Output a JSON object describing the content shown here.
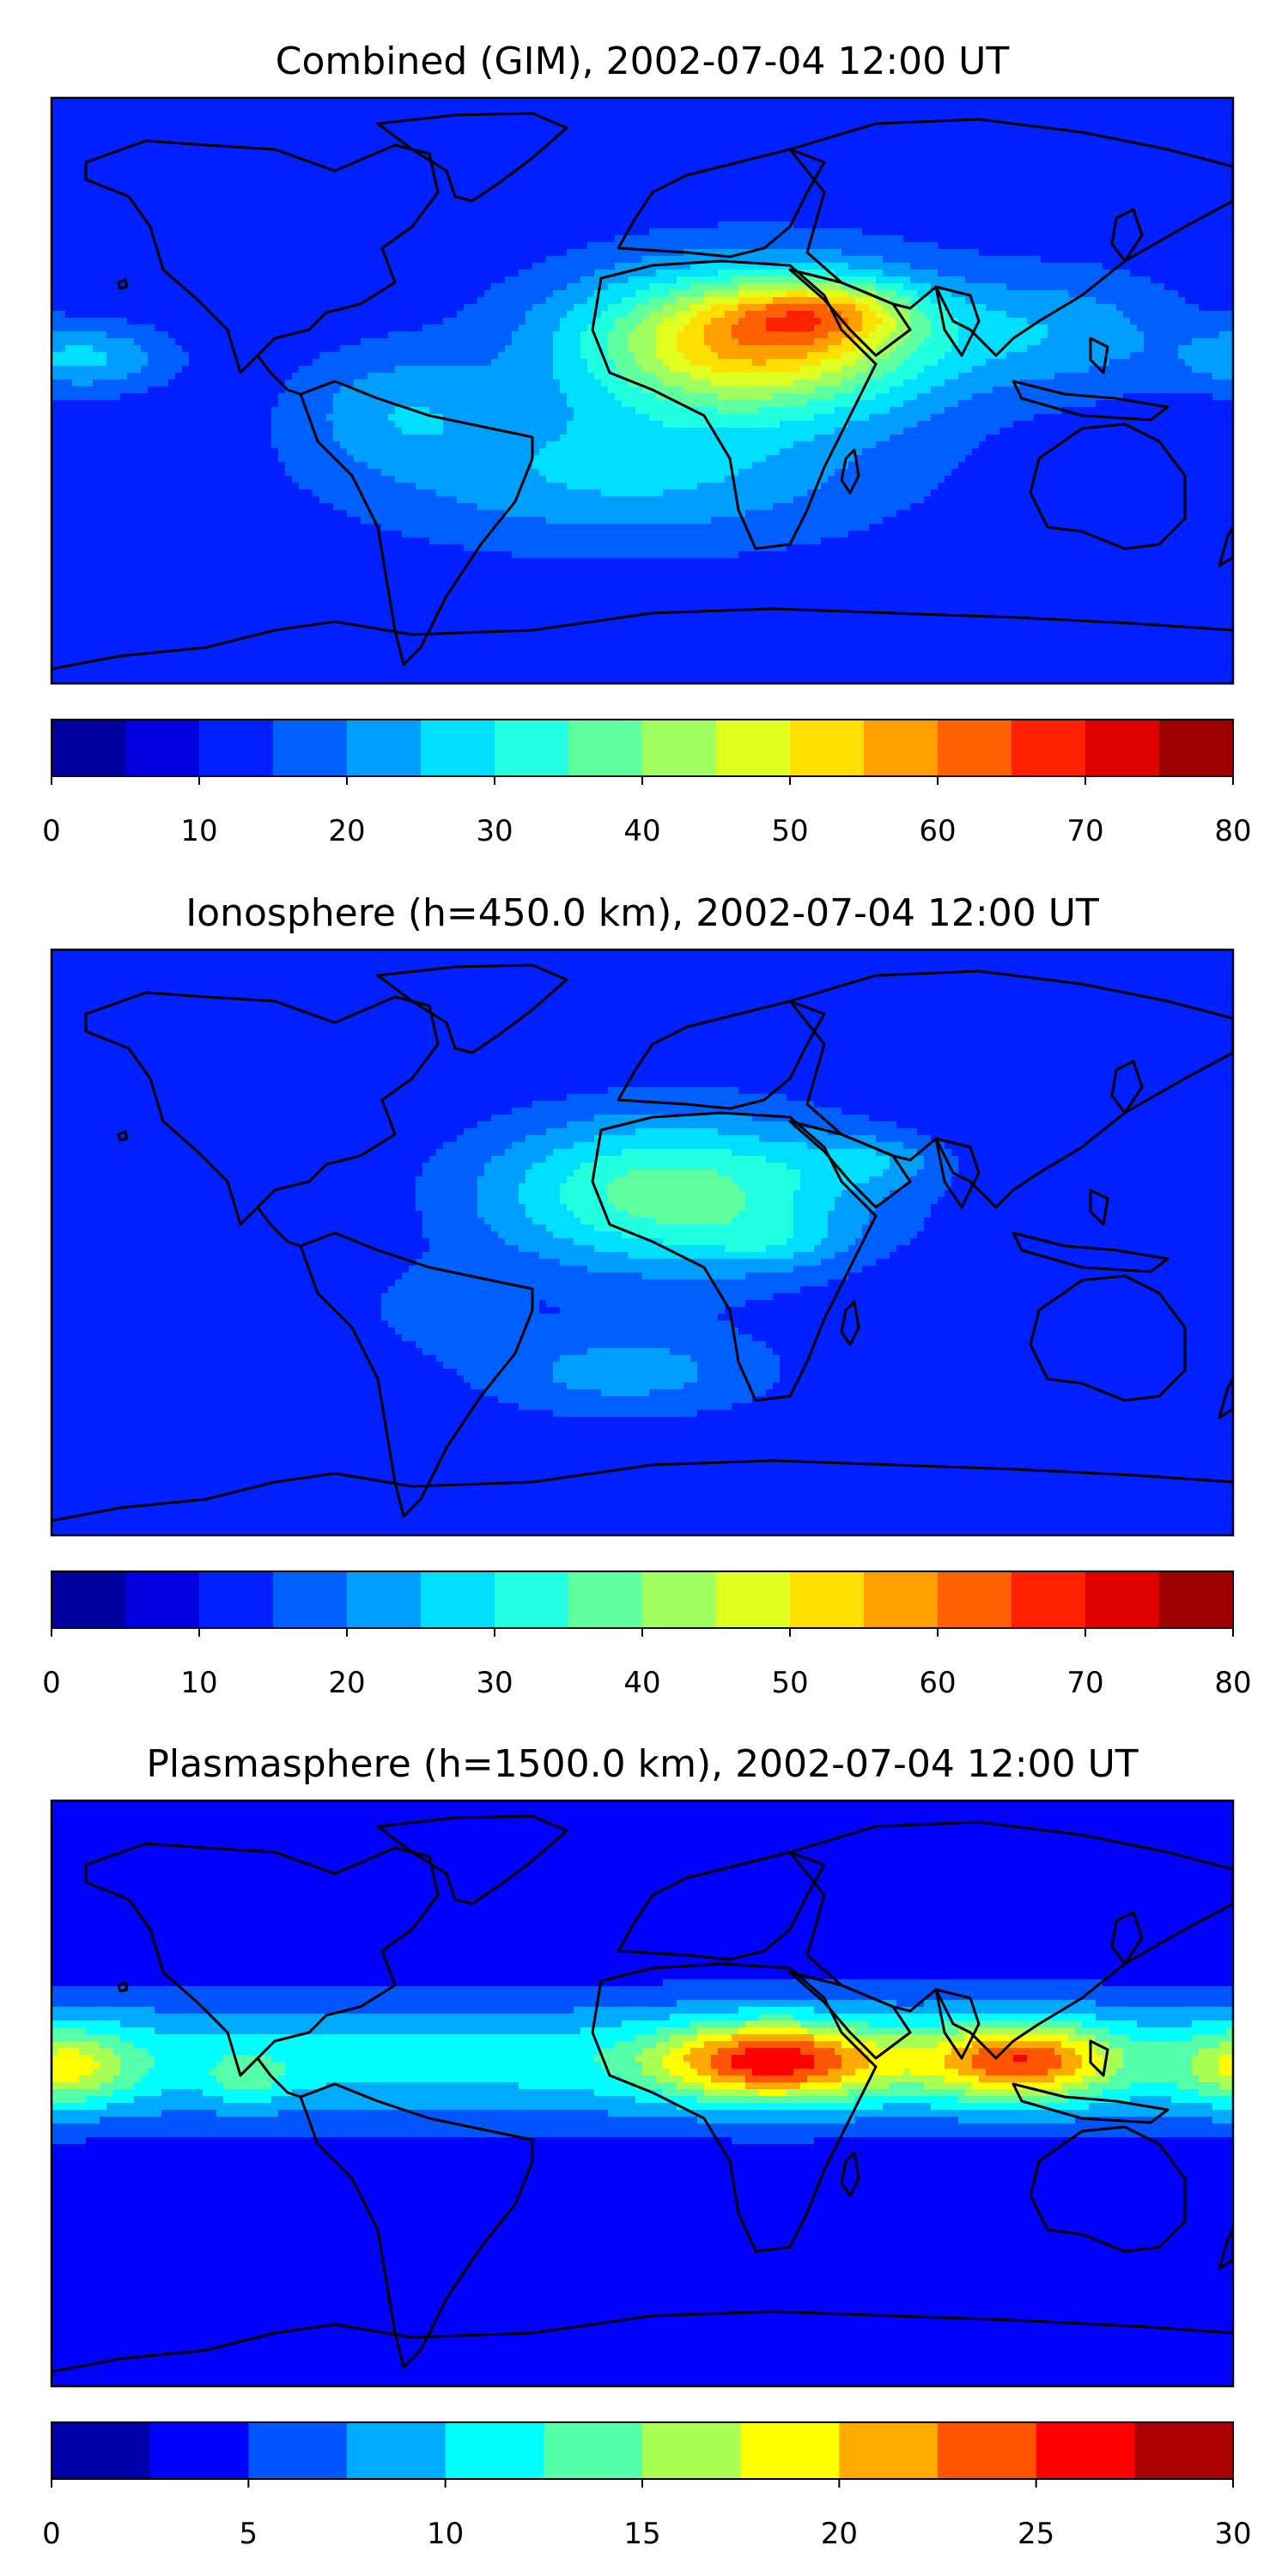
{
  "chart_data": [
    {
      "type": "heatmap",
      "title": "Combined (GIM), 2002-07-04 12:00 UT",
      "colorbar": {
        "min": 0,
        "max": 80,
        "levels": [
          0,
          5,
          10,
          15,
          20,
          25,
          30,
          35,
          40,
          45,
          50,
          55,
          60,
          65,
          70,
          75,
          80
        ],
        "ticks": [
          "0",
          "10",
          "20",
          "30",
          "40",
          "50",
          "60",
          "70",
          "80"
        ],
        "tick_values": [
          0,
          10,
          20,
          30,
          40,
          50,
          60,
          70,
          80
        ]
      },
      "field": {
        "base": 12,
        "blobs": [
          {
            "lon": 35,
            "lat": 15,
            "slon": 55,
            "slat": 22,
            "amp": 45
          },
          {
            "lon": 55,
            "lat": 24,
            "slon": 28,
            "slat": 9,
            "amp": 18
          },
          {
            "lon": -5,
            "lat": -25,
            "slon": 75,
            "slat": 22,
            "amp": 14
          },
          {
            "lon": -75,
            "lat": -5,
            "slon": 30,
            "slat": 18,
            "amp": 10
          },
          {
            "lon": 130,
            "lat": 18,
            "slon": 35,
            "slat": 18,
            "amp": 10
          },
          {
            "lon": -170,
            "lat": 10,
            "slon": 25,
            "slat": 10,
            "amp": 14
          }
        ]
      }
    },
    {
      "type": "heatmap",
      "title": "Ionosphere  (h=450.0 km), 2002-07-04 12:00 UT",
      "colorbar": {
        "min": 0,
        "max": 80,
        "levels": [
          0,
          5,
          10,
          15,
          20,
          25,
          30,
          35,
          40,
          45,
          50,
          55,
          60,
          65,
          70,
          75,
          80
        ],
        "ticks": [
          "0",
          "10",
          "20",
          "30",
          "40",
          "50",
          "60",
          "70",
          "80"
        ],
        "tick_values": [
          0,
          10,
          20,
          30,
          40,
          50,
          60,
          70,
          80
        ]
      },
      "field": {
        "base": 10,
        "blobs": [
          {
            "lon": 10,
            "lat": 15,
            "slon": 60,
            "slat": 25,
            "amp": 28
          },
          {
            "lon": 70,
            "lat": 25,
            "slon": 22,
            "slat": 8,
            "amp": 8
          },
          {
            "lon": 40,
            "lat": 0,
            "slon": 20,
            "slat": 8,
            "amp": 6
          },
          {
            "lon": -5,
            "lat": -40,
            "slon": 50,
            "slat": 15,
            "amp": 12
          },
          {
            "lon": -65,
            "lat": -20,
            "slon": 25,
            "slat": 15,
            "amp": 6
          }
        ]
      }
    },
    {
      "type": "heatmap",
      "title": "Plasmasphere (h=1500.0 km), 2002-07-04 12:00 UT",
      "colorbar": {
        "min": 0,
        "max": 30,
        "levels": [
          0,
          2.5,
          5,
          7.5,
          10,
          12.5,
          15,
          17.5,
          20,
          22.5,
          25,
          27.5,
          30
        ],
        "ticks": [
          "0",
          "5",
          "10",
          "15",
          "20",
          "25",
          "30"
        ],
        "tick_values": [
          0,
          5,
          10,
          15,
          20,
          25,
          30
        ]
      },
      "field": {
        "base": 3,
        "band": {
          "lat": 10,
          "slat": 20,
          "amp": 8
        },
        "blobs": [
          {
            "lon": 40,
            "lat": 10,
            "slon": 35,
            "slat": 12,
            "amp": 16
          },
          {
            "lon": 115,
            "lat": 10,
            "slon": 28,
            "slat": 12,
            "amp": 14
          },
          {
            "lon": -175,
            "lat": 8,
            "slon": 20,
            "slat": 12,
            "amp": 8
          },
          {
            "lon": -120,
            "lat": 5,
            "slon": 12,
            "slat": 8,
            "amp": 4
          }
        ]
      }
    }
  ],
  "coastline_color": "#000000",
  "colormap": "jet"
}
